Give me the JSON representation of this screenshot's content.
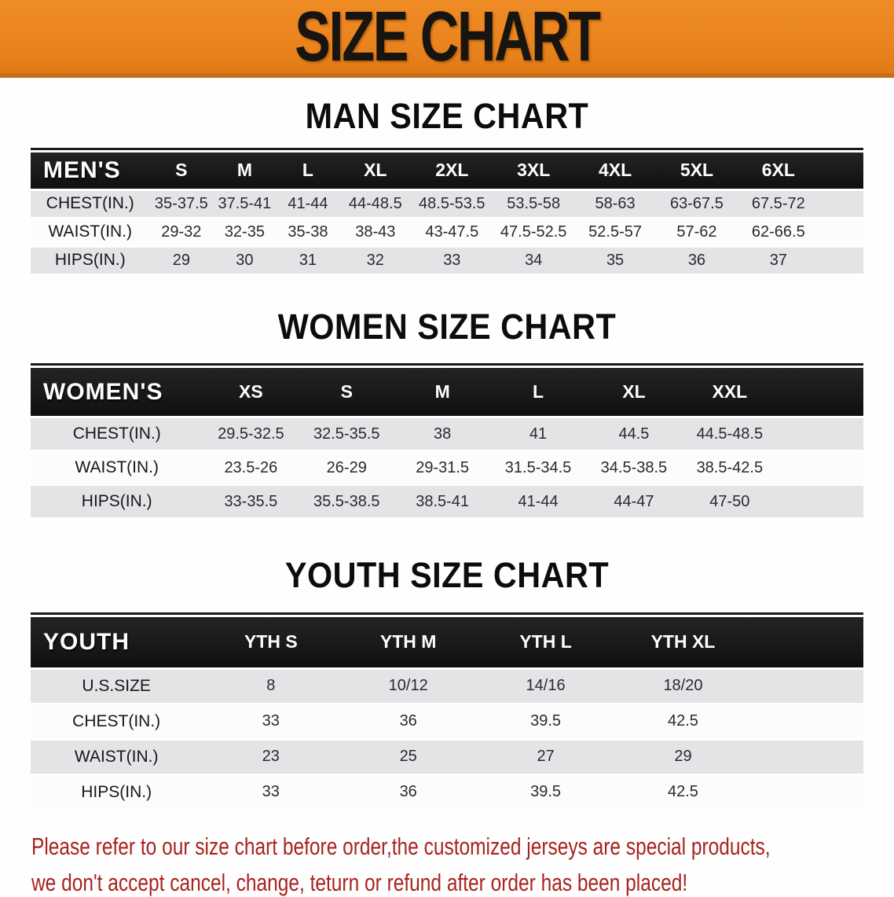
{
  "banner": {
    "title": "SIZE CHART"
  },
  "colors": {
    "banner_orange": "#e8821d",
    "banner_edge": "#c76e1e",
    "table_header_black": "#141414",
    "row_gray": "#e4e4e7",
    "row_white": "#fcfcfd",
    "note_red": "#a8231f"
  },
  "chart_data": [
    {
      "type": "table",
      "title": "MAN SIZE CHART",
      "columns": [
        "MEN'S",
        "S",
        "M",
        "L",
        "XL",
        "2XL",
        "3XL",
        "4XL",
        "5XL",
        "6XL"
      ],
      "rows": [
        [
          "CHEST(IN.)",
          "35-37.5",
          "37.5-41",
          "41-44",
          "44-48.5",
          "48.5-53.5",
          "53.5-58",
          "58-63",
          "63-67.5",
          "67.5-72"
        ],
        [
          "WAIST(IN.)",
          "29-32",
          "32-35",
          "35-38",
          "38-43",
          "43-47.5",
          "47.5-52.5",
          "52.5-57",
          "57-62",
          "62-66.5"
        ],
        [
          "HIPS(IN.)",
          "29",
          "30",
          "31",
          "32",
          "33",
          "34",
          "35",
          "36",
          "37"
        ]
      ]
    },
    {
      "type": "table",
      "title": "WOMEN SIZE CHART",
      "columns": [
        "WOMEN'S",
        "XS",
        "S",
        "M",
        "L",
        "XL",
        "XXL"
      ],
      "rows": [
        [
          "CHEST(IN.)",
          "29.5-32.5",
          "32.5-35.5",
          "38",
          "41",
          "44.5",
          "44.5-48.5"
        ],
        [
          "WAIST(IN.)",
          "23.5-26",
          "26-29",
          "29-31.5",
          "31.5-34.5",
          "34.5-38.5",
          "38.5-42.5"
        ],
        [
          "HIPS(IN.)",
          "33-35.5",
          "35.5-38.5",
          "38.5-41",
          "41-44",
          "44-47",
          "47-50"
        ]
      ]
    },
    {
      "type": "table",
      "title": "YOUTH SIZE CHART",
      "columns": [
        "YOUTH",
        "YTH S",
        "YTH M",
        "YTH L",
        "YTH XL"
      ],
      "rows": [
        [
          "U.S.SIZE",
          "8",
          "10/12",
          "14/16",
          "18/20"
        ],
        [
          "CHEST(IN.)",
          "33",
          "36",
          "39.5",
          "42.5"
        ],
        [
          "WAIST(IN.)",
          "23",
          "25",
          "27",
          "29"
        ],
        [
          "HIPS(IN.)",
          "33",
          "36",
          "39.5",
          "42.5"
        ]
      ]
    }
  ],
  "footer": {
    "line1": "Please refer to our size chart before order,the customized jerseys are special products,",
    "line2": "we don't accept cancel, change, teturn or refund after order has been placed!"
  }
}
